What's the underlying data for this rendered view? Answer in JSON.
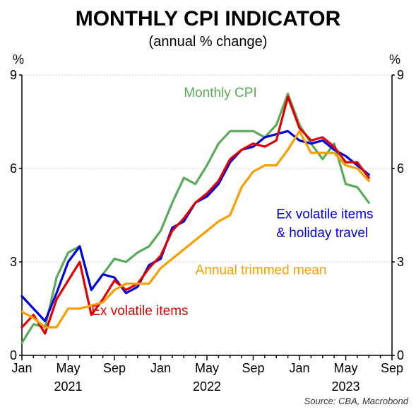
{
  "chart_data": {
    "type": "line",
    "title": "MONTHLY CPI INDICATOR",
    "subtitle": "(annual % change)",
    "ylabel_left": "%",
    "ylabel_right": "%",
    "ylim": [
      0,
      9
    ],
    "yticks": [
      0,
      3,
      6,
      9
    ],
    "x_start": "2021-01",
    "x_end": "2023-09",
    "x_tick_labels": [
      "Jan",
      "May",
      "Sep",
      "Jan",
      "May",
      "Sep",
      "Jan",
      "May",
      "Sep"
    ],
    "x_tick_dates": [
      "2021-01",
      "2021-05",
      "2021-09",
      "2022-01",
      "2022-05",
      "2022-09",
      "2023-01",
      "2023-05",
      "2023-09"
    ],
    "year_labels": [
      "2021",
      "2022",
      "2023"
    ],
    "grid": true,
    "source": "Source: CBA, Macrobond",
    "series": [
      {
        "name": "Monthly CPI",
        "color": "#5aaa5a",
        "x": [
          "2021-01",
          "2021-02",
          "2021-03",
          "2021-04",
          "2021-05",
          "2021-06",
          "2021-07",
          "2021-08",
          "2021-09",
          "2021-10",
          "2021-11",
          "2021-12",
          "2022-01",
          "2022-02",
          "2022-03",
          "2022-04",
          "2022-05",
          "2022-06",
          "2022-07",
          "2022-08",
          "2022-09",
          "2022-10",
          "2022-11",
          "2022-12",
          "2023-01",
          "2023-02",
          "2023-03",
          "2023-04",
          "2023-05",
          "2023-06",
          "2023-07"
        ],
        "values": [
          0.4,
          1.0,
          0.9,
          2.5,
          3.3,
          3.5,
          2.1,
          2.6,
          3.1,
          3.0,
          3.3,
          3.5,
          4.0,
          4.9,
          5.7,
          5.5,
          6.1,
          6.8,
          7.2,
          7.2,
          7.2,
          7.0,
          7.4,
          8.4,
          7.4,
          6.8,
          6.3,
          6.8,
          5.5,
          5.4,
          4.9
        ]
      },
      {
        "name": "Ex volatile items & holiday travel",
        "color": "#0000dd",
        "x": [
          "2021-01",
          "2021-02",
          "2021-03",
          "2021-04",
          "2021-05",
          "2021-06",
          "2021-07",
          "2021-08",
          "2021-09",
          "2021-10",
          "2021-11",
          "2021-12",
          "2022-01",
          "2022-02",
          "2022-03",
          "2022-04",
          "2022-05",
          "2022-06",
          "2022-07",
          "2022-08",
          "2022-09",
          "2022-10",
          "2022-11",
          "2022-12",
          "2023-01",
          "2023-02",
          "2023-03",
          "2023-04",
          "2023-05",
          "2023-06",
          "2023-07"
        ],
        "values": [
          1.9,
          1.5,
          1.1,
          2.0,
          3.0,
          3.5,
          2.1,
          2.6,
          2.5,
          2.0,
          2.2,
          2.9,
          3.1,
          4.1,
          4.3,
          4.9,
          5.1,
          5.5,
          6.2,
          6.6,
          6.7,
          7.0,
          7.1,
          7.2,
          6.9,
          6.8,
          6.9,
          6.6,
          6.4,
          6.1,
          5.8
        ]
      },
      {
        "name": "Ex volatile items",
        "color": "#e00000",
        "x": [
          "2021-01",
          "2021-02",
          "2021-03",
          "2021-04",
          "2021-05",
          "2021-06",
          "2021-07",
          "2021-08",
          "2021-09",
          "2021-10",
          "2021-11",
          "2021-12",
          "2022-01",
          "2022-02",
          "2022-03",
          "2022-04",
          "2022-05",
          "2022-06",
          "2022-07",
          "2022-08",
          "2022-09",
          "2022-10",
          "2022-11",
          "2022-12",
          "2023-01",
          "2023-02",
          "2023-03",
          "2023-04",
          "2023-05",
          "2023-06",
          "2023-07"
        ],
        "values": [
          0.9,
          1.3,
          0.7,
          1.8,
          2.4,
          3.0,
          1.3,
          1.8,
          2.4,
          2.1,
          2.3,
          2.8,
          3.2,
          4.0,
          4.4,
          4.9,
          5.2,
          5.6,
          6.3,
          6.6,
          6.8,
          6.7,
          6.9,
          8.3,
          7.3,
          6.9,
          7.0,
          6.7,
          6.2,
          6.2,
          5.7
        ]
      },
      {
        "name": "Annual trimmed mean",
        "color": "#f59f00",
        "x": [
          "2021-01",
          "2021-02",
          "2021-03",
          "2021-04",
          "2021-05",
          "2021-06",
          "2021-07",
          "2021-08",
          "2021-09",
          "2021-10",
          "2021-11",
          "2021-12",
          "2022-01",
          "2022-02",
          "2022-03",
          "2022-04",
          "2022-05",
          "2022-06",
          "2022-07",
          "2022-08",
          "2022-09",
          "2022-10",
          "2022-11",
          "2022-12",
          "2023-01",
          "2023-02",
          "2023-03",
          "2023-04",
          "2023-05",
          "2023-06",
          "2023-07"
        ],
        "values": [
          1.4,
          1.2,
          0.9,
          0.9,
          1.5,
          1.5,
          1.6,
          1.7,
          2.1,
          2.3,
          2.3,
          2.3,
          2.8,
          3.1,
          3.4,
          3.7,
          4.0,
          4.3,
          4.5,
          5.4,
          5.9,
          6.1,
          6.1,
          6.6,
          7.2,
          6.5,
          6.5,
          6.5,
          6.1,
          6.0,
          5.6
        ]
      }
    ],
    "annotations": [
      {
        "text": "Monthly CPI",
        "series": "Monthly CPI",
        "anchor": [
          "2022-03",
          8.3
        ]
      },
      {
        "text": "Ex volatile items",
        "series": "Ex volatile items",
        "anchor": [
          "2021-07",
          1.3
        ]
      },
      {
        "text": "Annual trimmed mean",
        "series": "Annual trimmed mean",
        "anchor": [
          "2022-04",
          2.6
        ]
      },
      {
        "text": "Ex volatile items",
        "series": "Ex volatile items & holiday travel",
        "anchor": [
          "2022-11",
          4.4
        ]
      },
      {
        "text": "& holiday travel",
        "series": "Ex volatile items & holiday travel",
        "anchor": [
          "2022-11",
          3.8
        ]
      }
    ]
  }
}
